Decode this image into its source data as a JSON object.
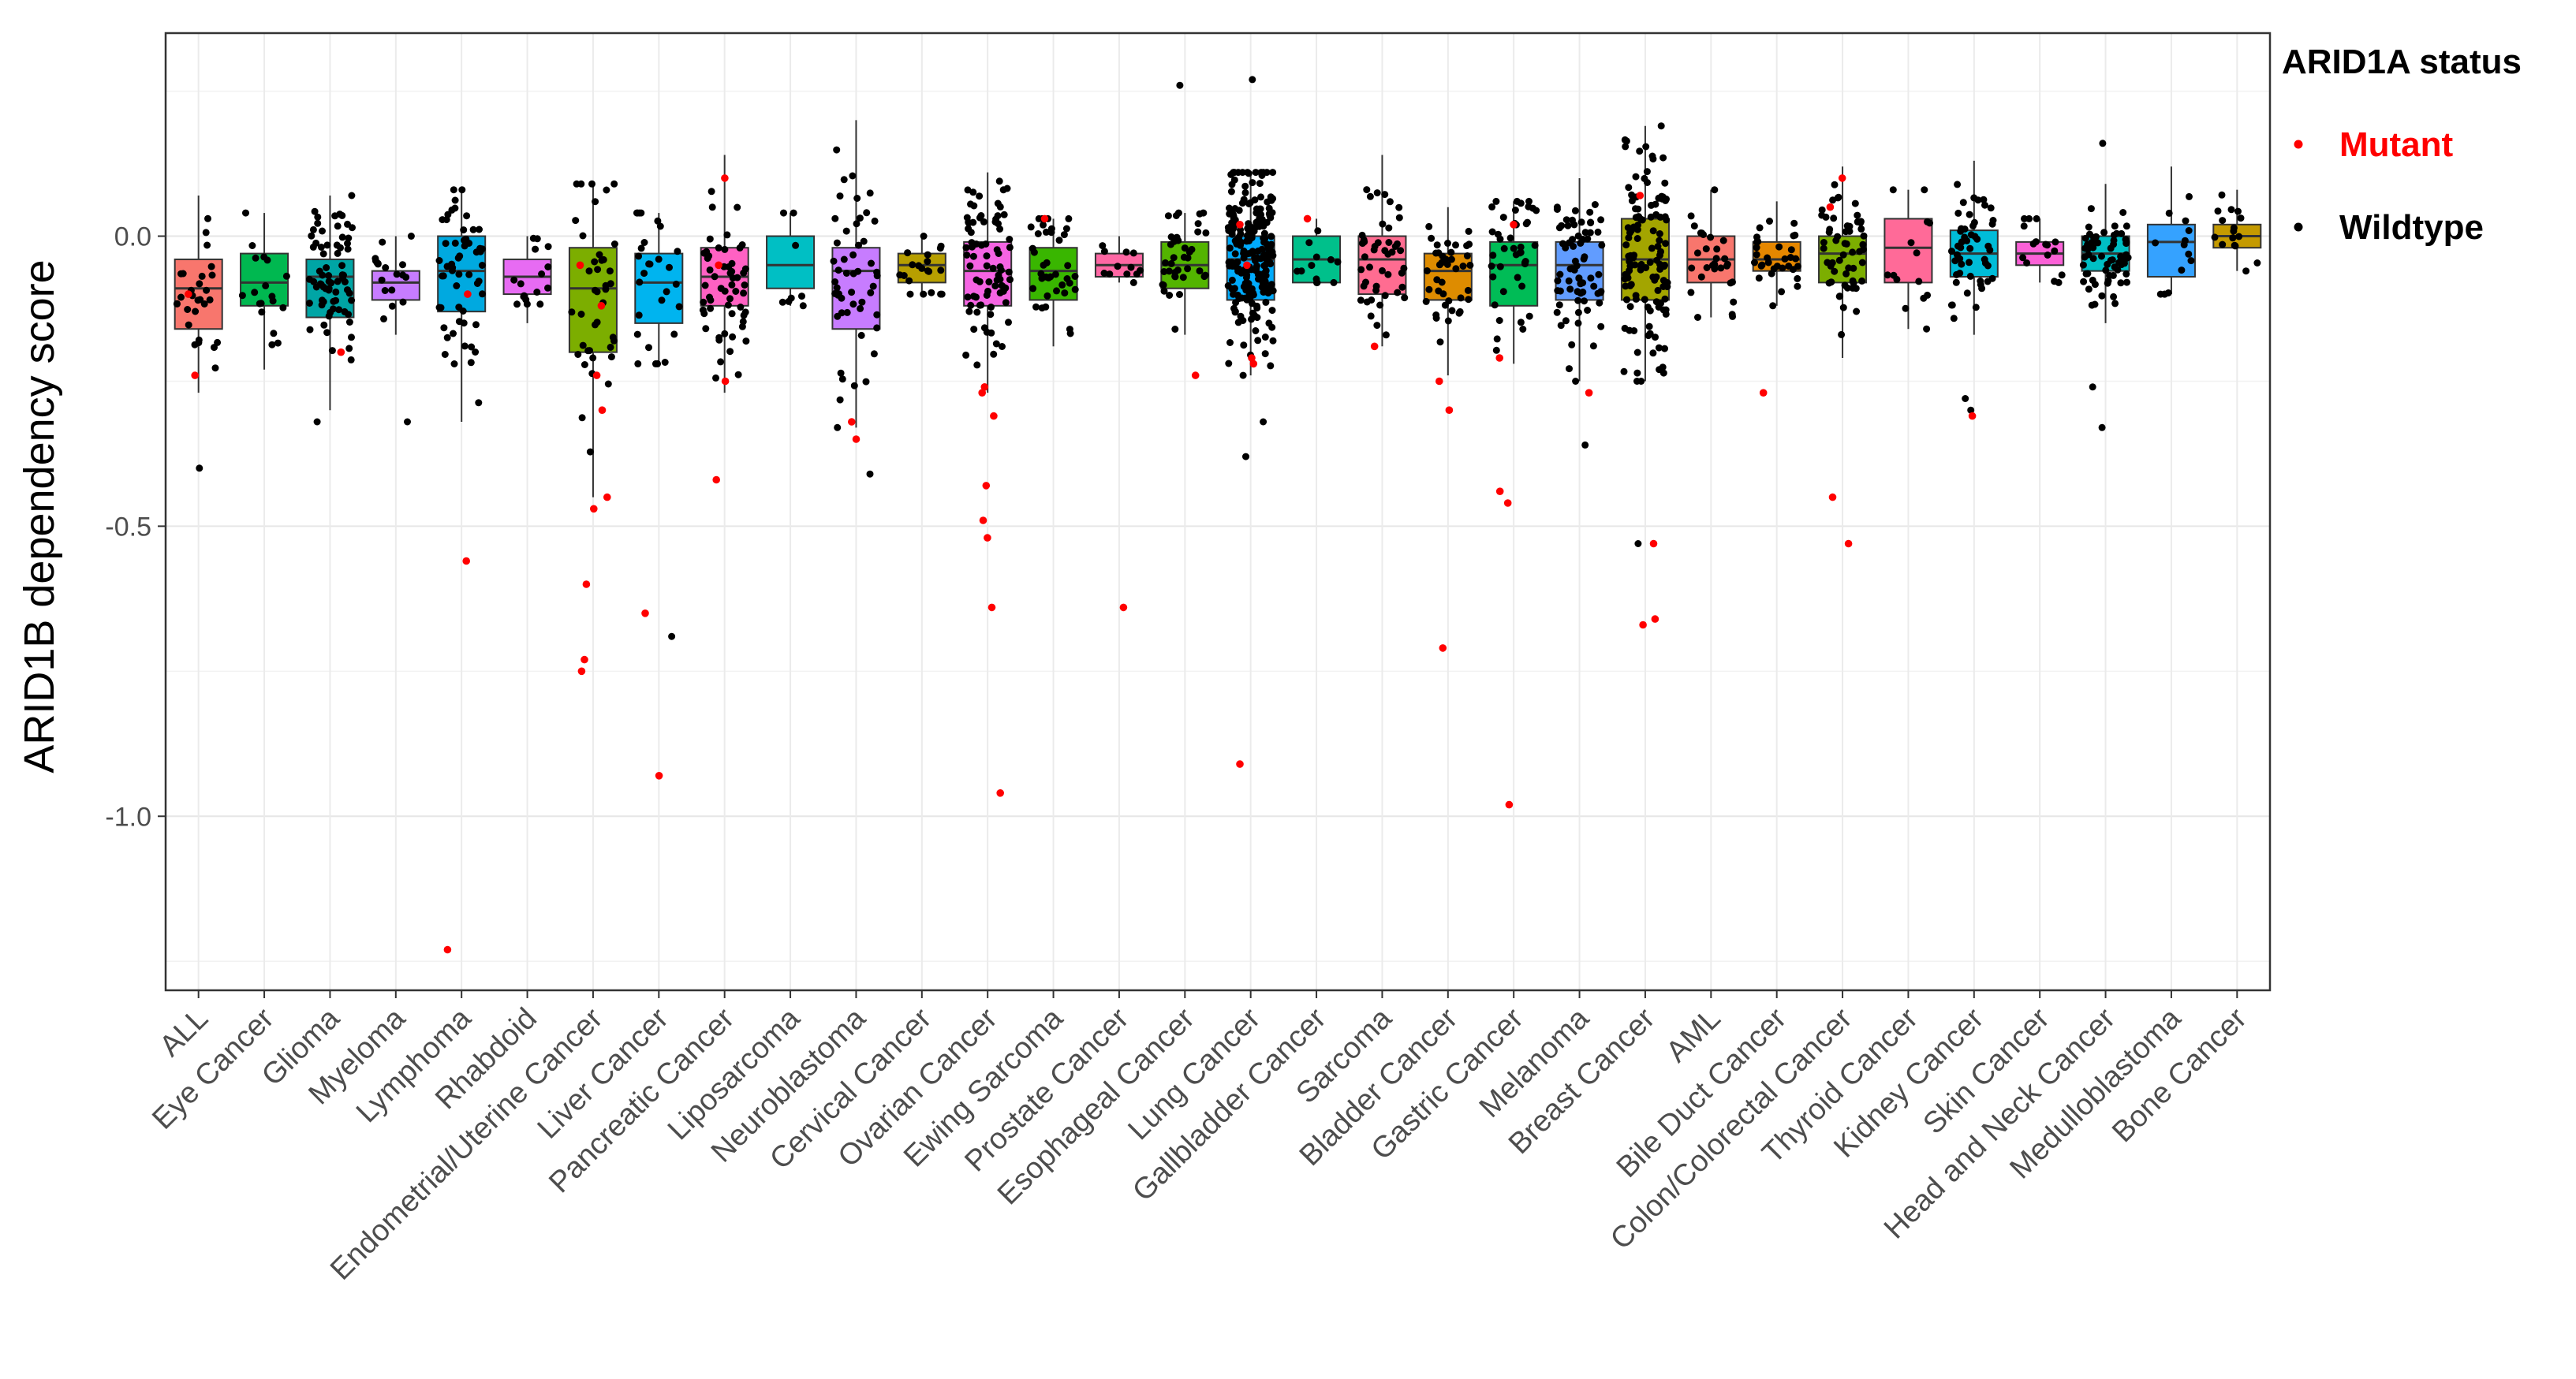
{
  "chart_data": {
    "type": "box",
    "title": "",
    "xlabel": "",
    "ylabel": "ARID1B dependency score",
    "ylim": [
      -1.3,
      0.35
    ],
    "yticks": [
      -1.0,
      -0.5,
      0.0
    ],
    "ytick_labels": [
      "-1.0",
      "-0.5",
      "0.0"
    ],
    "grid": true,
    "legend": {
      "title": "ARID1A status",
      "position": "right",
      "items": [
        {
          "label": "Mutant",
          "color": "#ff0000"
        },
        {
          "label": "Wildtype",
          "color": "#000000"
        }
      ]
    },
    "categories": [
      "ALL",
      "Eye Cancer",
      "Glioma",
      "Myeloma",
      "Lymphoma",
      "Rhabdoid",
      "Endometrial/Uterine Cancer",
      "Liver Cancer",
      "Pancreatic Cancer",
      "Liposarcoma",
      "Neuroblastoma",
      "Cervical Cancer",
      "Ovarian Cancer",
      "Ewing Sarcoma",
      "Prostate Cancer",
      "Esophageal Cancer",
      "Lung Cancer",
      "Gallbladder Cancer",
      "Sarcoma",
      "Bladder Cancer",
      "Gastric Cancer",
      "Melanoma",
      "Breast Cancer",
      "AML",
      "Bile Duct Cancer",
      "Colon/Colorectal Cancer",
      "Thyroid Cancer",
      "Kidney Cancer",
      "Skin Cancer",
      "Head and Neck Cancer",
      "Medulloblastoma",
      "Bone Cancer"
    ],
    "box_colors": [
      "#F8766D",
      "#00B850",
      "#00A5A5",
      "#C77CFF",
      "#00A9E0",
      "#E76BF3",
      "#7CAE00",
      "#00B4EF",
      "#FF61C3",
      "#00BFC4",
      "#C77CFF",
      "#B79F00",
      "#F564E3",
      "#39B600",
      "#FF67A4",
      "#53B400",
      "#00ABFD",
      "#00C08B",
      "#FF6C91",
      "#DE8C00",
      "#00BC56",
      "#619CFF",
      "#A3A500",
      "#F8766D",
      "#E58700",
      "#7CAE00",
      "#FF6A98",
      "#00BCD8",
      "#FB61D7",
      "#00BFC4",
      "#35A2FF",
      "#C49A00"
    ],
    "boxes": [
      {
        "q1": -0.16,
        "median": -0.09,
        "q3": -0.04,
        "low": -0.27,
        "high": 0.07
      },
      {
        "q1": -0.12,
        "median": -0.08,
        "q3": -0.03,
        "low": -0.23,
        "high": 0.04
      },
      {
        "q1": -0.14,
        "median": -0.07,
        "q3": -0.04,
        "low": -0.3,
        "high": 0.07
      },
      {
        "q1": -0.11,
        "median": -0.08,
        "q3": -0.06,
        "low": -0.17,
        "high": 0.0
      },
      {
        "q1": -0.13,
        "median": -0.06,
        "q3": 0.0,
        "low": -0.32,
        "high": 0.08
      },
      {
        "q1": -0.1,
        "median": -0.07,
        "q3": -0.04,
        "low": -0.15,
        "high": 0.0
      },
      {
        "q1": -0.2,
        "median": -0.09,
        "q3": -0.02,
        "low": -0.45,
        "high": 0.09
      },
      {
        "q1": -0.15,
        "median": -0.08,
        "q3": -0.03,
        "low": -0.22,
        "high": 0.04
      },
      {
        "q1": -0.12,
        "median": -0.07,
        "q3": -0.02,
        "low": -0.27,
        "high": 0.14
      },
      {
        "q1": -0.09,
        "median": -0.05,
        "q3": 0.0,
        "low": -0.12,
        "high": 0.04
      },
      {
        "q1": -0.16,
        "median": -0.06,
        "q3": -0.02,
        "low": -0.33,
        "high": 0.2
      },
      {
        "q1": -0.08,
        "median": -0.05,
        "q3": -0.03,
        "low": -0.1,
        "high": 0.0
      },
      {
        "q1": -0.12,
        "median": -0.06,
        "q3": -0.01,
        "low": -0.27,
        "high": 0.11
      },
      {
        "q1": -0.11,
        "median": -0.06,
        "q3": -0.02,
        "low": -0.19,
        "high": 0.03
      },
      {
        "q1": -0.07,
        "median": -0.05,
        "q3": -0.03,
        "low": -0.08,
        "high": 0.0
      },
      {
        "q1": -0.09,
        "median": -0.05,
        "q3": -0.01,
        "low": -0.17,
        "high": 0.04
      },
      {
        "q1": -0.11,
        "median": -0.04,
        "q3": 0.0,
        "low": -0.24,
        "high": 0.11
      },
      {
        "q1": -0.08,
        "median": -0.04,
        "q3": 0.0,
        "low": -0.08,
        "high": 0.03
      },
      {
        "q1": -0.1,
        "median": -0.04,
        "q3": 0.0,
        "low": -0.19,
        "high": 0.14
      },
      {
        "q1": -0.11,
        "median": -0.06,
        "q3": -0.03,
        "low": -0.24,
        "high": 0.05
      },
      {
        "q1": -0.12,
        "median": -0.05,
        "q3": -0.01,
        "low": -0.22,
        "high": 0.06
      },
      {
        "q1": -0.11,
        "median": -0.05,
        "q3": -0.01,
        "low": -0.25,
        "high": 0.1
      },
      {
        "q1": -0.11,
        "median": -0.04,
        "q3": 0.03,
        "low": -0.25,
        "high": 0.19
      },
      {
        "q1": -0.08,
        "median": -0.04,
        "q3": 0.0,
        "low": -0.14,
        "high": 0.08
      },
      {
        "q1": -0.06,
        "median": -0.04,
        "q3": -0.01,
        "low": -0.12,
        "high": 0.06
      },
      {
        "q1": -0.08,
        "median": -0.03,
        "q3": 0.0,
        "low": -0.21,
        "high": 0.12
      },
      {
        "q1": -0.08,
        "median": -0.02,
        "q3": 0.03,
        "low": -0.16,
        "high": 0.08
      },
      {
        "q1": -0.07,
        "median": -0.03,
        "q3": 0.01,
        "low": -0.17,
        "high": 0.13
      },
      {
        "q1": -0.05,
        "median": -0.03,
        "q3": -0.01,
        "low": -0.08,
        "high": 0.03
      },
      {
        "q1": -0.06,
        "median": -0.03,
        "q3": 0.0,
        "low": -0.15,
        "high": 0.09
      },
      {
        "q1": -0.07,
        "median": -0.01,
        "q3": 0.02,
        "low": -0.1,
        "high": 0.12
      },
      {
        "q1": -0.02,
        "median": 0.0,
        "q3": 0.02,
        "low": -0.06,
        "high": 0.08
      }
    ],
    "mutant_points": [
      {
        "cat": 0,
        "y": -0.24
      },
      {
        "cat": 0,
        "y": -0.1
      },
      {
        "cat": 2,
        "y": -0.2
      },
      {
        "cat": 4,
        "y": -0.56
      },
      {
        "cat": 4,
        "y": -1.23
      },
      {
        "cat": 4,
        "y": -0.1
      },
      {
        "cat": 6,
        "y": -0.3
      },
      {
        "cat": 6,
        "y": -0.45
      },
      {
        "cat": 6,
        "y": -0.47
      },
      {
        "cat": 6,
        "y": -0.6
      },
      {
        "cat": 6,
        "y": -0.73
      },
      {
        "cat": 6,
        "y": -0.75
      },
      {
        "cat": 6,
        "y": -0.24
      },
      {
        "cat": 6,
        "y": -0.12
      },
      {
        "cat": 6,
        "y": -0.05
      },
      {
        "cat": 7,
        "y": -0.65
      },
      {
        "cat": 7,
        "y": -0.93
      },
      {
        "cat": 8,
        "y": -0.42
      },
      {
        "cat": 8,
        "y": -0.25
      },
      {
        "cat": 8,
        "y": 0.1
      },
      {
        "cat": 8,
        "y": -0.05
      },
      {
        "cat": 10,
        "y": -0.35
      },
      {
        "cat": 10,
        "y": -0.32
      },
      {
        "cat": 12,
        "y": -0.49
      },
      {
        "cat": 12,
        "y": -0.43
      },
      {
        "cat": 12,
        "y": -0.52
      },
      {
        "cat": 12,
        "y": -0.64
      },
      {
        "cat": 12,
        "y": -0.96
      },
      {
        "cat": 12,
        "y": -0.27
      },
      {
        "cat": 12,
        "y": -0.26
      },
      {
        "cat": 12,
        "y": -0.31
      },
      {
        "cat": 13,
        "y": 0.03
      },
      {
        "cat": 14,
        "y": -0.64
      },
      {
        "cat": 15,
        "y": -0.24
      },
      {
        "cat": 16,
        "y": -0.91
      },
      {
        "cat": 16,
        "y": -0.21
      },
      {
        "cat": 16,
        "y": -0.22
      },
      {
        "cat": 16,
        "y": -0.05
      },
      {
        "cat": 16,
        "y": 0.02
      },
      {
        "cat": 17,
        "y": 0.03
      },
      {
        "cat": 18,
        "y": -0.19
      },
      {
        "cat": 19,
        "y": -0.3
      },
      {
        "cat": 19,
        "y": -0.71
      },
      {
        "cat": 19,
        "y": -0.25
      },
      {
        "cat": 20,
        "y": -0.44
      },
      {
        "cat": 20,
        "y": -0.46
      },
      {
        "cat": 20,
        "y": -0.98
      },
      {
        "cat": 20,
        "y": -0.21
      },
      {
        "cat": 20,
        "y": 0.02
      },
      {
        "cat": 21,
        "y": -0.27
      },
      {
        "cat": 22,
        "y": -0.53
      },
      {
        "cat": 22,
        "y": -0.66
      },
      {
        "cat": 22,
        "y": -0.67
      },
      {
        "cat": 22,
        "y": 0.07
      },
      {
        "cat": 24,
        "y": -0.27
      },
      {
        "cat": 25,
        "y": -0.45
      },
      {
        "cat": 25,
        "y": -0.53
      },
      {
        "cat": 25,
        "y": 0.1
      },
      {
        "cat": 25,
        "y": 0.05
      },
      {
        "cat": 27,
        "y": -0.31
      }
    ],
    "wildtype_outliers": [
      {
        "cat": 0,
        "y": -0.4
      },
      {
        "cat": 2,
        "y": -0.32
      },
      {
        "cat": 3,
        "y": -0.32
      },
      {
        "cat": 7,
        "y": -0.69
      },
      {
        "cat": 10,
        "y": -0.41
      },
      {
        "cat": 15,
        "y": 0.26
      },
      {
        "cat": 16,
        "y": -0.38
      },
      {
        "cat": 16,
        "y": -0.32
      },
      {
        "cat": 16,
        "y": 0.27
      },
      {
        "cat": 21,
        "y": -0.36
      },
      {
        "cat": 22,
        "y": -0.53
      },
      {
        "cat": 27,
        "y": -0.28
      },
      {
        "cat": 27,
        "y": -0.3
      },
      {
        "cat": 29,
        "y": -0.33
      },
      {
        "cat": 29,
        "y": -0.26
      },
      {
        "cat": 29,
        "y": 0.16
      }
    ],
    "sample_counts": [
      28,
      18,
      70,
      18,
      55,
      16,
      40,
      28,
      55,
      8,
      50,
      20,
      80,
      38,
      12,
      38,
      220,
      12,
      45,
      40,
      42,
      70,
      120,
      30,
      32,
      55,
      14,
      50,
      16,
      65,
      14,
      16
    ]
  }
}
